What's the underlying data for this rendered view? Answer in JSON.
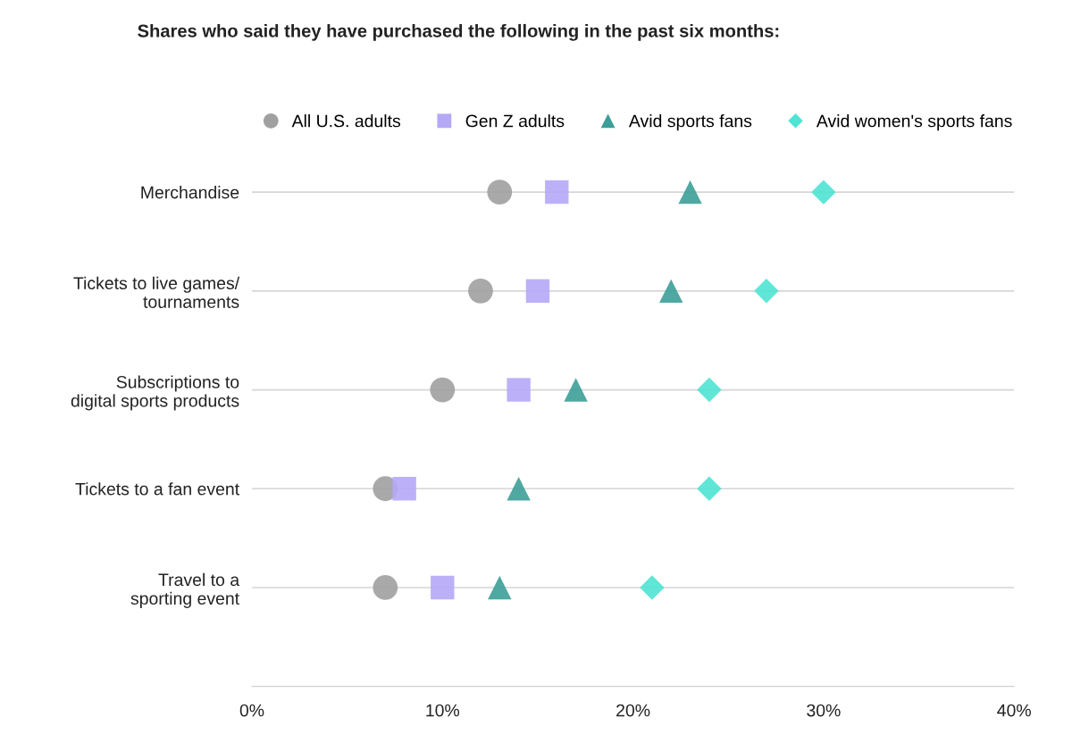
{
  "chart_data": {
    "type": "scatter",
    "orientation": "horizontal",
    "title": "Shares who said they have purchased the following in the past six months:",
    "categories": [
      "Merchandise",
      "Tickets to live games/\ntournaments",
      "Subscriptions to\ndigital sports products",
      "Tickets to a fan event",
      "Travel to a\nsporting event"
    ],
    "series": [
      {
        "name": "All U.S. adults",
        "color": "#a0a0a0",
        "marker": "circle",
        "values": [
          13,
          12,
          10,
          7,
          7
        ]
      },
      {
        "name": "Gen Z adults",
        "color": "#b5a8f7",
        "marker": "square",
        "values": [
          16,
          15,
          14,
          8,
          10
        ]
      },
      {
        "name": "Avid sports fans",
        "color": "#3c9e98",
        "marker": "triangle",
        "values": [
          23,
          22,
          17,
          14,
          13
        ]
      },
      {
        "name": "Avid women's sports fans",
        "color": "#4fe3d3",
        "marker": "diamond",
        "values": [
          30,
          27,
          24,
          24,
          21
        ]
      }
    ],
    "xlim": [
      0,
      40
    ],
    "xticks": [
      {
        "value": 0,
        "label": "0%"
      },
      {
        "value": 10,
        "label": "10%"
      },
      {
        "value": 20,
        "label": "20%"
      },
      {
        "value": 30,
        "label": "30%"
      },
      {
        "value": 40,
        "label": "40%"
      }
    ],
    "grid": "y",
    "legend": "top"
  }
}
